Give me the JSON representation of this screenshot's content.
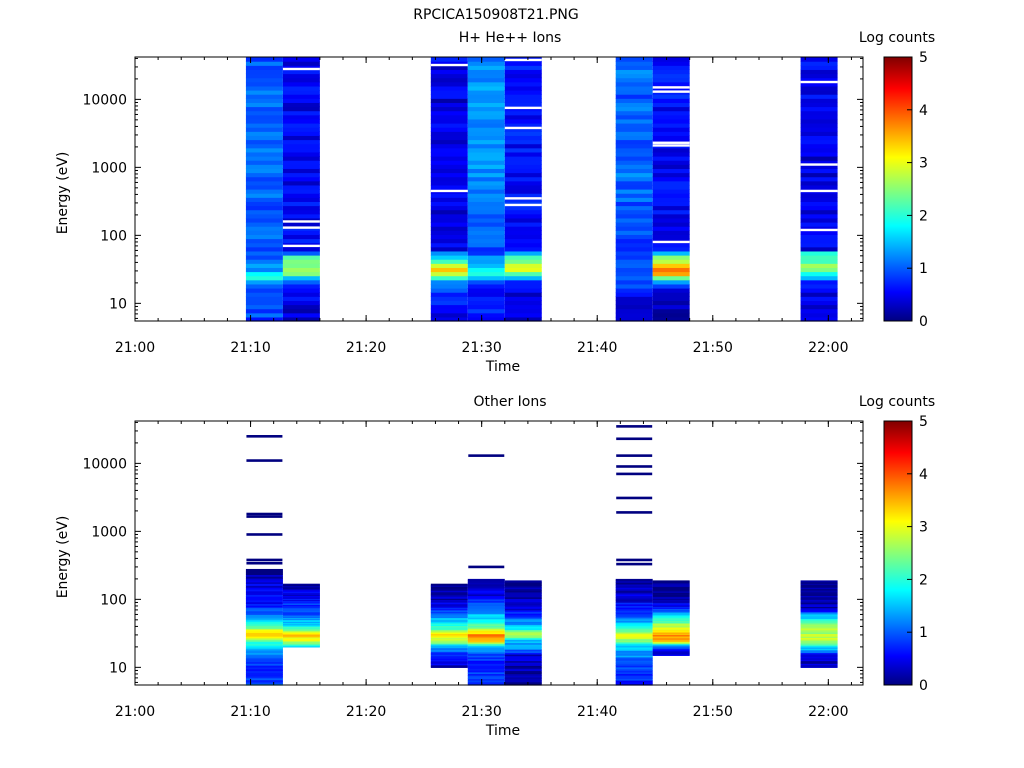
{
  "title": "RPCICA150908T21.PNG",
  "chart_data": [
    {
      "type": "heatmap",
      "title": "H+ He++ Ions",
      "xlabel": "Time",
      "ylabel": "Energy (eV)",
      "yscale": "log",
      "ylim": [
        5.5,
        42000
      ],
      "xlim": [
        "21:00",
        "22:03"
      ],
      "xticks": [
        "21:00",
        "21:10",
        "21:20",
        "21:30",
        "21:40",
        "21:50",
        "22:00"
      ],
      "yticks": [
        "10",
        "100",
        "1000",
        "10000"
      ],
      "colorbar": {
        "label": "Log counts",
        "min": 0,
        "max": 5,
        "ticks": [
          "0",
          "1",
          "2",
          "3",
          "4",
          "5"
        ]
      },
      "columns": [
        {
          "t0": "21:09.6",
          "t1": "21:12.8",
          "profile": [
            [
              5.5,
              0.85
            ],
            [
              9,
              1.0
            ],
            [
              14,
              0.9
            ],
            [
              20,
              1.2
            ],
            [
              25,
              1.9
            ],
            [
              30,
              1.4
            ],
            [
              40,
              1.0
            ],
            [
              60,
              0.8
            ],
            [
              100,
              1.1
            ],
            [
              300,
              1.0
            ],
            [
              1000,
              1.0
            ],
            [
              5000,
              1.1
            ],
            [
              42000,
              1.0
            ]
          ]
        },
        {
          "t0": "21:12.8",
          "t1": "21:16.0",
          "profile": [
            [
              5.5,
              0.3
            ],
            [
              20,
              0.6
            ],
            [
              25,
              1.9
            ],
            [
              30,
              2.9
            ],
            [
              40,
              2.5
            ],
            [
              50,
              2.2
            ],
            [
              60,
              0.0
            ],
            [
              70,
              0.5
            ],
            [
              200,
              0.55
            ],
            [
              1000,
              0.5
            ],
            [
              10000,
              0.5
            ],
            [
              42000,
              0.5
            ]
          ]
        },
        {
          "t0": "21:25.6",
          "t1": "21:28.8",
          "profile": [
            [
              5.5,
              0.4
            ],
            [
              15,
              0.8
            ],
            [
              20,
              1.0
            ],
            [
              25,
              2.5
            ],
            [
              30,
              3.4
            ],
            [
              35,
              2.9
            ],
            [
              40,
              2.2
            ],
            [
              50,
              1.6
            ],
            [
              60,
              0.5
            ],
            [
              100,
              0.4
            ],
            [
              1000,
              0.5
            ],
            [
              10000,
              0.4
            ],
            [
              42000,
              0.5
            ]
          ]
        },
        {
          "t0": "21:28.8",
          "t1": "21:32.0",
          "profile": [
            [
              5.5,
              0.7
            ],
            [
              15,
              0.6
            ],
            [
              20,
              0.5
            ],
            [
              25,
              1.8
            ],
            [
              30,
              2.0
            ],
            [
              40,
              1.3
            ],
            [
              60,
              0.9
            ],
            [
              200,
              1.0
            ],
            [
              1000,
              1.2
            ],
            [
              10000,
              1.3
            ],
            [
              42000,
              1.2
            ]
          ]
        },
        {
          "t0": "21:32.0",
          "t1": "21:35.2",
          "profile": [
            [
              5.5,
              0.4
            ],
            [
              20,
              0.5
            ],
            [
              25,
              1.8
            ],
            [
              30,
              2.9
            ],
            [
              40,
              2.6
            ],
            [
              50,
              2.0
            ],
            [
              60,
              0.5
            ],
            [
              200,
              0.6
            ],
            [
              1000,
              0.6
            ],
            [
              10000,
              0.6
            ],
            [
              42000,
              0.6
            ]
          ]
        },
        {
          "t0": "21:41.6",
          "t1": "21:44.8",
          "profile": [
            [
              5.5,
              0.3
            ],
            [
              15,
              0.5
            ],
            [
              20,
              0.9
            ],
            [
              25,
              0.8
            ],
            [
              30,
              0.9
            ],
            [
              40,
              0.8
            ],
            [
              60,
              0.9
            ],
            [
              100,
              0.9
            ],
            [
              1000,
              1.1
            ],
            [
              10000,
              1.0
            ],
            [
              42000,
              1.1
            ]
          ]
        },
        {
          "t0": "21:44.8",
          "t1": "21:48.0",
          "profile": [
            [
              5.5,
              0.0
            ],
            [
              15,
              0.4
            ],
            [
              20,
              1.0
            ],
            [
              25,
              2.9
            ],
            [
              30,
              3.8
            ],
            [
              40,
              3.0
            ],
            [
              50,
              2.4
            ],
            [
              60,
              0.7
            ],
            [
              200,
              0.5
            ],
            [
              1000,
              0.5
            ],
            [
              10000,
              0.6
            ],
            [
              42000,
              0.6
            ]
          ]
        },
        {
          "t0": "21:57.6",
          "t1": "22:00.8",
          "profile": [
            [
              5.5,
              0.3
            ],
            [
              20,
              0.5
            ],
            [
              25,
              1.5
            ],
            [
              30,
              2.6
            ],
            [
              45,
              2.2
            ],
            [
              55,
              2.0
            ],
            [
              60,
              0.5
            ],
            [
              200,
              0.5
            ],
            [
              1000,
              0.4
            ],
            [
              10000,
              0.5
            ],
            [
              42000,
              0.5
            ]
          ]
        }
      ],
      "gaps": [
        {
          "t0": "21:12.8",
          "t1": "21:16.0",
          "energies": [
            28000,
            160,
            130,
            70
          ]
        },
        {
          "t0": "21:25.6",
          "t1": "21:28.8",
          "energies": [
            32000,
            450
          ]
        },
        {
          "t0": "21:32.0",
          "t1": "21:35.2",
          "energies": [
            38000,
            7500,
            3800,
            350,
            280
          ]
        },
        {
          "t0": "21:44.8",
          "t1": "21:48.0",
          "energies": [
            15000,
            13000,
            2300,
            2100,
            80
          ]
        },
        {
          "t0": "21:57.6",
          "t1": "22:00.8",
          "energies": [
            18000,
            1100,
            450,
            120
          ]
        }
      ]
    },
    {
      "type": "heatmap",
      "title": "Other Ions",
      "xlabel": "Time",
      "ylabel": "Energy (eV)",
      "yscale": "log",
      "ylim": [
        5.5,
        42000
      ],
      "xlim": [
        "21:00",
        "22:03"
      ],
      "xticks": [
        "21:00",
        "21:10",
        "21:20",
        "21:30",
        "21:40",
        "21:50",
        "22:00"
      ],
      "yticks": [
        "10",
        "100",
        "1000",
        "10000"
      ],
      "colorbar": {
        "label": "Log counts",
        "min": 0,
        "max": 5,
        "ticks": [
          "0",
          "1",
          "2",
          "3",
          "4",
          "5"
        ]
      },
      "columns": [
        {
          "t0": "21:09.6",
          "t1": "21:12.8",
          "profile": [
            [
              5.5,
              1.0
            ],
            [
              10,
              0.7
            ],
            [
              20,
              1.5
            ],
            [
              25,
              2.4
            ],
            [
              30,
              3.5
            ],
            [
              35,
              3.0
            ],
            [
              40,
              2.2
            ],
            [
              60,
              1.0
            ],
            [
              100,
              0.6
            ],
            [
              150,
              0.5
            ],
            [
              200,
              0.2
            ],
            [
              280,
              0.1
            ]
          ]
        },
        {
          "t0": "21:12.8",
          "t1": "21:16.0",
          "profile": [
            [
              20,
              1.4
            ],
            [
              25,
              2.9
            ],
            [
              30,
              3.3
            ],
            [
              40,
              1.9
            ],
            [
              60,
              1.0
            ],
            [
              100,
              0.6
            ],
            [
              150,
              0.3
            ],
            [
              170,
              0.1
            ]
          ]
        },
        {
          "t0": "21:25.6",
          "t1": "21:28.8",
          "profile": [
            [
              10,
              0.2
            ],
            [
              20,
              1.2
            ],
            [
              25,
              2.9
            ],
            [
              30,
              3.2
            ],
            [
              40,
              2.0
            ],
            [
              60,
              1.2
            ],
            [
              80,
              0.5
            ],
            [
              100,
              0.3
            ],
            [
              170,
              0.1
            ]
          ]
        },
        {
          "t0": "21:28.8",
          "t1": "21:32.0",
          "profile": [
            [
              5.5,
              0.8
            ],
            [
              15,
              0.8
            ],
            [
              20,
              1.5
            ],
            [
              25,
              3.5
            ],
            [
              30,
              3.8
            ],
            [
              40,
              2.2
            ],
            [
              60,
              1.5
            ],
            [
              100,
              0.6
            ],
            [
              150,
              0.3
            ],
            [
              200,
              0.1
            ]
          ]
        },
        {
          "t0": "21:32.0",
          "t1": "21:35.2",
          "profile": [
            [
              5.5,
              0.1
            ],
            [
              15,
              0.3
            ],
            [
              20,
              1.5
            ],
            [
              25,
              1.4
            ],
            [
              30,
              2.9
            ],
            [
              40,
              1.6
            ],
            [
              60,
              0.7
            ],
            [
              100,
              0.2
            ],
            [
              150,
              0.1
            ],
            [
              190,
              0.1
            ]
          ]
        },
        {
          "t0": "21:41.6",
          "t1": "21:44.8",
          "profile": [
            [
              5.5,
              0.6
            ],
            [
              10,
              0.9
            ],
            [
              20,
              1.5
            ],
            [
              25,
              2.6
            ],
            [
              30,
              3.0
            ],
            [
              40,
              1.9
            ],
            [
              60,
              0.9
            ],
            [
              100,
              0.4
            ],
            [
              150,
              0.2
            ],
            [
              200,
              0.1
            ]
          ]
        },
        {
          "t0": "21:44.8",
          "t1": "21:48.0",
          "profile": [
            [
              15,
              0.3
            ],
            [
              20,
              0.8
            ],
            [
              25,
              3.5
            ],
            [
              30,
              3.6
            ],
            [
              40,
              2.9
            ],
            [
              60,
              1.6
            ],
            [
              80,
              0.5
            ],
            [
              120,
              0.2
            ],
            [
              190,
              0.1
            ]
          ]
        },
        {
          "t0": "21:57.6",
          "t1": "22:00.8",
          "profile": [
            [
              10,
              0.2
            ],
            [
              15,
              0.3
            ],
            [
              20,
              1.7
            ],
            [
              25,
              2.8
            ],
            [
              30,
              2.7
            ],
            [
              40,
              2.6
            ],
            [
              60,
              1.4
            ],
            [
              70,
              0.3
            ],
            [
              90,
              0.2
            ],
            [
              190,
              0.1
            ]
          ]
        }
      ],
      "lines": [
        {
          "t0": "21:09.6",
          "t1": "21:12.8",
          "energies": [
            25000,
            11000,
            1800,
            1650,
            900,
            380,
            340
          ]
        },
        {
          "t0": "21:28.8",
          "t1": "21:32.0",
          "energies": [
            13000,
            300
          ]
        },
        {
          "t0": "21:41.6",
          "t1": "21:44.8",
          "energies": [
            35000,
            23000,
            13000,
            9000,
            7000,
            3100,
            1900,
            380,
            330
          ]
        }
      ]
    }
  ],
  "colors": {
    "colormap": [
      "#000080",
      "#0000ff",
      "#00ffff",
      "#ffff00",
      "#ff0000",
      "#800000"
    ],
    "axis": "#000000",
    "background": "#ffffff"
  }
}
